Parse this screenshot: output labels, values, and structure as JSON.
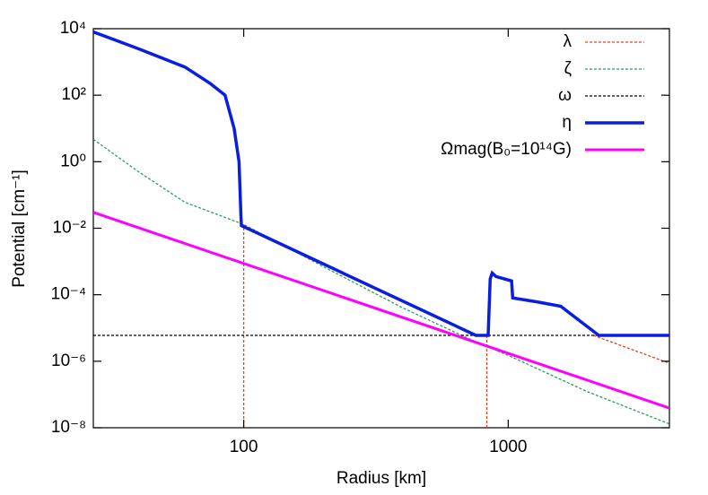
{
  "chart_data": {
    "type": "line",
    "xlabel": "Radius [km]",
    "ylabel": "Potential [cm⁻¹]",
    "xlog": true,
    "ylog": true,
    "xlim": [
      27,
      4070
    ],
    "ylim": [
      1e-08,
      10000
    ],
    "xticks": [
      100,
      1000
    ],
    "yticks": [
      {
        "value": 1e-08,
        "label": "10⁻⁸"
      },
      {
        "value": 1e-06,
        "label": "10⁻⁶"
      },
      {
        "value": 0.0001,
        "label": "10⁻⁴"
      },
      {
        "value": 0.01,
        "label": "10⁻²"
      },
      {
        "value": 1,
        "label": "10⁰"
      },
      {
        "value": 100,
        "label": "10²"
      },
      {
        "value": 10000,
        "label": "10⁴"
      }
    ],
    "legend": "top-right",
    "series": [
      {
        "name": "λ",
        "color": "#e2431c",
        "dashed": true,
        "width": 1.3,
        "x": [
          100,
          100,
          null,
          830,
          830,
          null,
          2100,
          4070
        ],
        "values": [
          1e-08,
          0.013,
          null,
          1e-08,
          6e-06,
          null,
          6e-06,
          8.7e-07
        ]
      },
      {
        "name": "ζ",
        "color": "#2e9a5f",
        "dashed": true,
        "width": 1.3,
        "x": [
          27,
          40,
          60,
          100,
          200,
          400,
          700,
          1000,
          2000,
          4070
        ],
        "values": [
          4.7,
          0.5,
          0.06,
          0.013,
          0.0007,
          4e-05,
          5e-06,
          1.5e-06,
          1.2e-07,
          1.3e-08
        ]
      },
      {
        "name": "ω",
        "color": "#000000",
        "dashed": true,
        "width": 1.3,
        "x": [
          27,
          4070
        ],
        "values": [
          6e-06,
          6e-06
        ]
      },
      {
        "name": "η",
        "color": "#0a1ee0",
        "dashed": false,
        "width": 3.5,
        "x": [
          27,
          40,
          60,
          75,
          85,
          92,
          96,
          97.5,
          98,
          755,
          840,
          855,
          870,
          900,
          1030,
          1040,
          1300,
          1580,
          2200,
          4070
        ],
        "values": [
          8000,
          2500,
          700,
          220,
          100,
          10,
          1,
          0.03,
          0.012,
          6e-06,
          6e-06,
          0.0003,
          0.00045,
          0.00035,
          0.00026,
          8e-05,
          6e-05,
          4.5e-05,
          6e-06,
          6e-06
        ]
      },
      {
        "name": "Ωmag(B₀=10¹⁴G)",
        "color": "#ff00ff",
        "dashed": false,
        "width": 3,
        "x": [
          27,
          4070
        ],
        "values": [
          0.03,
          3.9e-08
        ]
      }
    ]
  }
}
